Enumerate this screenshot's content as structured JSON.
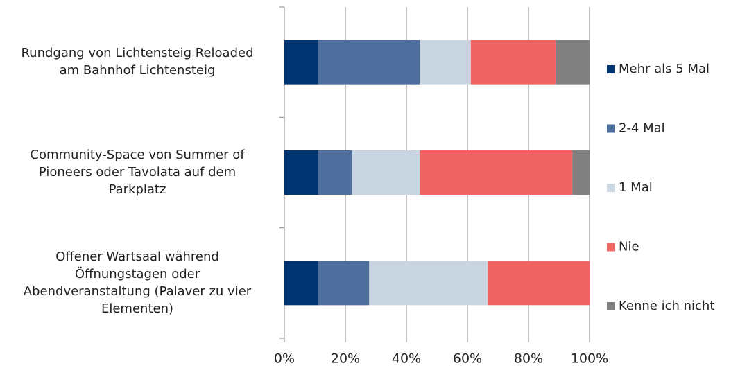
{
  "chart_data": {
    "type": "stacked_barh",
    "categories": [
      [
        "Rundgang von Lichtensteig Reloaded",
        "am Bahnhof Lichtensteig"
      ],
      [
        "Community-Space von Summer of",
        "Pioneers oder Tavolata auf dem",
        "Parkplatz"
      ],
      [
        "Offener Wartsaal während",
        "Öffnungstagen oder",
        "Abendveranstaltung (Palaver zu vier",
        "Elementen)"
      ]
    ],
    "series": [
      {
        "name": "Mehr als 5 Mal",
        "color": "#003470",
        "values": [
          11.1,
          11.1,
          11.1
        ]
      },
      {
        "name": "2-4 Mal",
        "color": "#4e6f9e",
        "values": [
          33.3,
          11.1,
          16.7
        ]
      },
      {
        "name": "1 Mal",
        "color": "#c9d5e1",
        "values": [
          16.7,
          22.2,
          38.9
        ]
      },
      {
        "name": "Nie",
        "color": "#f06464",
        "values": [
          27.8,
          50.0,
          33.3
        ]
      },
      {
        "name": "Kenne ich nicht",
        "color": "#808080",
        "values": [
          11.1,
          5.6,
          0
        ]
      }
    ],
    "xlim": [
      0,
      100
    ],
    "xticks": [
      {
        "value": 0,
        "label": "0%"
      },
      {
        "value": 20,
        "label": "20%"
      },
      {
        "value": 40,
        "label": "40%"
      },
      {
        "value": 60,
        "label": "60%"
      },
      {
        "value": 80,
        "label": "80%"
      },
      {
        "value": 100,
        "label": "100%"
      }
    ],
    "grid": true,
    "legend": "right"
  }
}
